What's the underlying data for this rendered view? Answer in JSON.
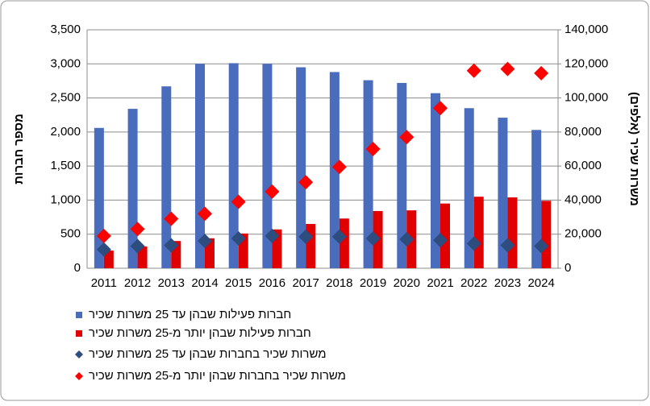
{
  "chart_data": {
    "type": "combo",
    "y_label": "מספר חברות",
    "y2_label": "משרות שכיר (אלפים)",
    "categories": [
      "2011",
      "2012",
      "2013",
      "2014",
      "2015",
      "2016",
      "2017",
      "2018",
      "2019",
      "2020",
      "2021",
      "2022",
      "2023",
      "2024"
    ],
    "ylim": [
      0,
      3500
    ],
    "yticks": [
      0,
      500,
      {
        "value": 1000,
        "label": "1,000"
      },
      {
        "value": 1500,
        "label": "1,500"
      },
      {
        "value": 2000,
        "label": "2,000"
      },
      {
        "value": 2500,
        "label": "2,500"
      },
      {
        "value": 3000,
        "label": "3,000"
      },
      {
        "value": 3500,
        "label": "3,500"
      }
    ],
    "y2lim": [
      0,
      140000
    ],
    "y2ticks": [
      0,
      {
        "value": 20000,
        "label": "20,000"
      },
      {
        "value": 40000,
        "label": "40,000"
      },
      {
        "value": 60000,
        "label": "60,000"
      },
      {
        "value": 80000,
        "label": "80,000"
      },
      {
        "value": 100000,
        "label": "100,000"
      },
      {
        "value": 120000,
        "label": "120,000"
      },
      {
        "value": 140000,
        "label": "140,000"
      }
    ],
    "grid": true,
    "legend": "bottom",
    "series": [
      {
        "name": "חברות פעילות שבהן עד 25 משרות שכיר",
        "type": "bar",
        "color": "#4a6cbd",
        "values": [
          2060,
          2340,
          2670,
          3000,
          3010,
          3000,
          2950,
          2880,
          2760,
          2720,
          2570,
          2350,
          2210,
          2030
        ]
      },
      {
        "name": "חברות פעילות שבהן יותר מ-25 משרות שכיר",
        "type": "bar",
        "color": "#e00000",
        "values": [
          260,
          320,
          400,
          440,
          510,
          570,
          650,
          730,
          840,
          850,
          950,
          1050,
          1040,
          990
        ]
      },
      {
        "name": "משרות שכיר בחברות שבהן עד 25 משרות שכיר",
        "type": "scatter",
        "axis": "y2",
        "color": "#2e4d7f",
        "values": [
          11000,
          13000,
          13500,
          16000,
          17500,
          19000,
          18500,
          18500,
          17500,
          17000,
          16500,
          14500,
          13500,
          13000
        ]
      },
      {
        "name": "משרות שכיר בחברות שבהן יותר מ-25 משרות שכיר",
        "type": "scatter",
        "axis": "y2",
        "color": "#ff0000",
        "values": [
          19000,
          23000,
          29000,
          32000,
          39000,
          45000,
          50500,
          59500,
          70000,
          77000,
          94000,
          116000,
          117000,
          114500
        ]
      }
    ]
  }
}
